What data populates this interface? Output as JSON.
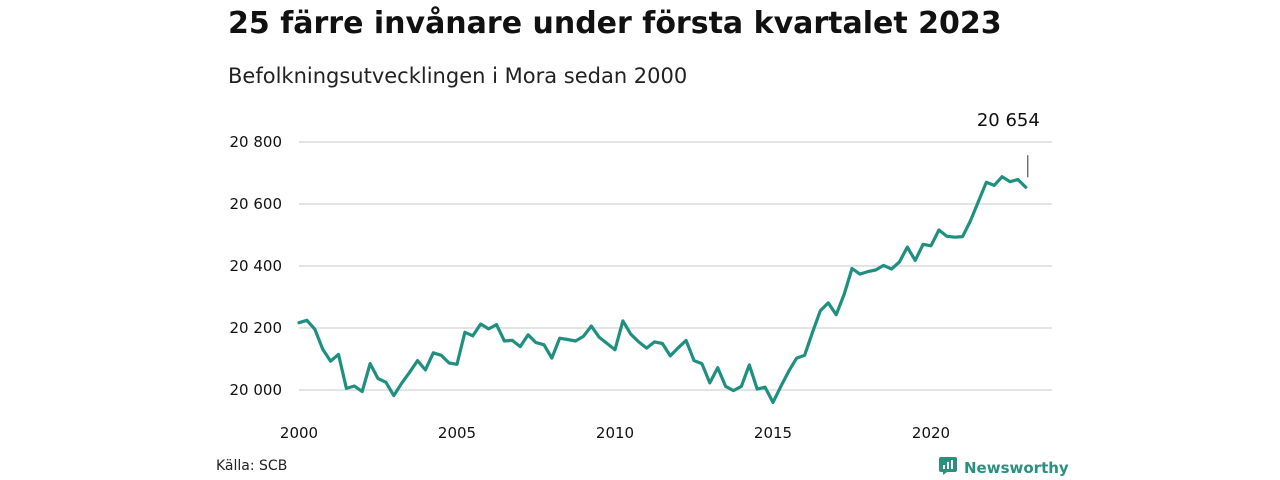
{
  "title": "25 färre invånare under första kvartalet 2023",
  "subtitle": "Befolkningsutvecklingen i Mora sedan 2000",
  "source": "Källa: SCB",
  "brand": {
    "name": "Newsworthy",
    "icon": "newsworthy-logo-icon",
    "color": "#2a9080"
  },
  "colors": {
    "line": "#1f9080",
    "grid": "#dcdcdc",
    "text": "#111111"
  },
  "chart_data": {
    "type": "line",
    "title": "25 färre invånare under första kvartalet 2023",
    "subtitle": "Befolkningsutvecklingen i Mora sedan 2000",
    "xlabel": "",
    "ylabel": "",
    "x_start": 2000,
    "x_step": 0.25,
    "xlim": [
      2000,
      2024
    ],
    "ylim": [
      19950,
      20860
    ],
    "x_ticks": [
      2000,
      2005,
      2010,
      2015,
      2020
    ],
    "x_tick_labels": [
      "2000",
      "2005",
      "2010",
      "2015",
      "2020"
    ],
    "y_ticks": [
      20000,
      20200,
      20400,
      20600,
      20800
    ],
    "y_tick_labels": [
      "20 000",
      "20 200",
      "20 400",
      "20 600",
      "20 800"
    ],
    "grid": true,
    "annotation": {
      "label": "20 654",
      "x": 2023.0,
      "value": 20654
    },
    "series": [
      {
        "values": [
          20217,
          20225,
          20196,
          20132,
          20093,
          20115,
          20005,
          20013,
          19995,
          20085,
          20037,
          20025,
          19982,
          20022,
          20057,
          20095,
          20065,
          20120,
          20112,
          20087,
          20083,
          20186,
          20175,
          20213,
          20197,
          20211,
          20158,
          20160,
          20140,
          20178,
          20153,
          20146,
          20103,
          20167,
          20163,
          20158,
          20173,
          20206,
          20170,
          20150,
          20130,
          20223,
          20180,
          20155,
          20135,
          20155,
          20150,
          20110,
          20136,
          20160,
          20095,
          20085,
          20023,
          20072,
          20012,
          19998,
          20012,
          20081,
          20003,
          20009,
          19960,
          20012,
          20061,
          20103,
          20112,
          20186,
          20256,
          20281,
          20243,
          20308,
          20392,
          20374,
          20382,
          20387,
          20402,
          20390,
          20413,
          20461,
          20418,
          20470,
          20465,
          20516,
          20496,
          20493,
          20495,
          20546,
          20608,
          20670,
          20660,
          20688,
          20672,
          20679,
          20654
        ]
      }
    ]
  }
}
